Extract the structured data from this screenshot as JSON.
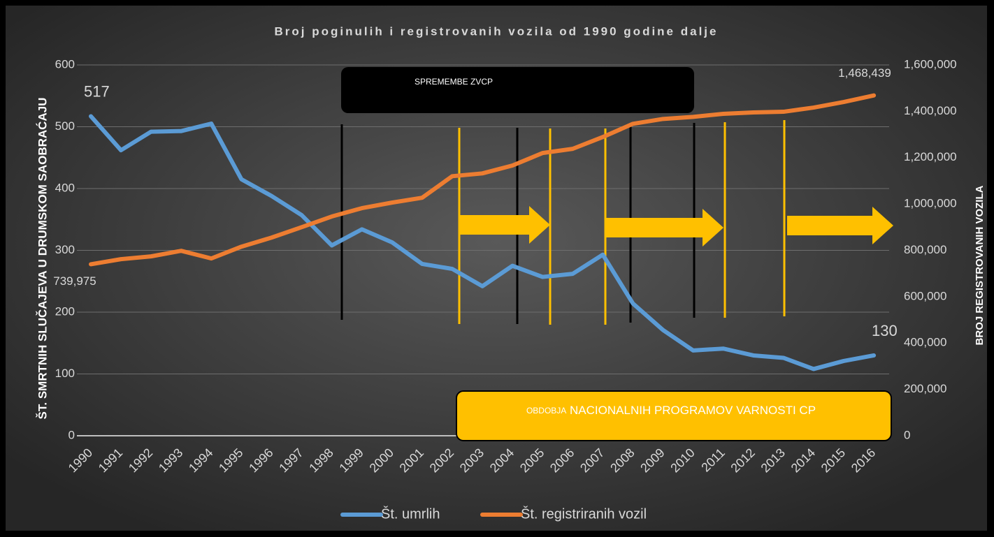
{
  "chart_data": {
    "type": "line",
    "title": "Broj poginulih i registrovanih vozila od 1990 godine dalje",
    "y_label": "ŠT. SMRTNIH SLUČAJEVA U DRUMSKOM SAOBRAĆAJU",
    "y2_label": "BROJ REGISTROVANIH VOZILA",
    "categories": [
      "1990",
      "1991",
      "1992",
      "1993",
      "1994",
      "1995",
      "1996",
      "1997",
      "1998",
      "1999",
      "2000",
      "2001",
      "2002",
      "2003",
      "2004",
      "2005",
      "2006",
      "2007",
      "2008",
      "2009",
      "2010",
      "2011",
      "2012",
      "2013",
      "2014",
      "2015",
      "2016"
    ],
    "series": [
      {
        "name": "Št. umrlih",
        "color": "#5b9bd5",
        "values": [
          517,
          462,
          492,
          493,
          505,
          415,
          388,
          357,
          308,
          334,
          313,
          278,
          270,
          242,
          275,
          257,
          262,
          293,
          214,
          171,
          138,
          141,
          130,
          126,
          108,
          121,
          130
        ],
        "value_labels": [
          "517",
          null,
          null,
          null,
          null,
          null,
          null,
          null,
          null,
          null,
          null,
          null,
          null,
          null,
          null,
          null,
          null,
          null,
          null,
          null,
          null,
          null,
          null,
          null,
          null,
          null,
          "130"
        ]
      },
      {
        "name": "Št. registriranih vozil",
        "color": "#ed7d31",
        "axis": "y2",
        "values": [
          739975,
          762000,
          774000,
          798000,
          765000,
          816000,
          855000,
          900000,
          946000,
          982000,
          1006000,
          1027000,
          1120000,
          1132000,
          1166000,
          1220000,
          1238000,
          1289000,
          1346000,
          1367000,
          1376000,
          1389000,
          1395000,
          1398000,
          1416000,
          1440000,
          1468439
        ],
        "value_labels": [
          "739,975",
          null,
          null,
          null,
          null,
          null,
          null,
          null,
          null,
          null,
          null,
          null,
          null,
          null,
          null,
          null,
          null,
          null,
          null,
          null,
          null,
          null,
          null,
          null,
          null,
          null,
          "1,468,439"
        ]
      }
    ],
    "ylim": [
      0,
      600
    ],
    "yticks": [
      0,
      100,
      200,
      300,
      400,
      500,
      600
    ],
    "y2lim": [
      0,
      1600000
    ],
    "y2ticks": [
      0,
      {
        "value": 200000,
        "label": "200,000"
      },
      {
        "value": 400000,
        "label": "400,000"
      },
      {
        "value": 600000,
        "label": "600,000"
      },
      {
        "value": 800000,
        "label": "800,000"
      },
      {
        "value": 1000000,
        "label": "1,000,000"
      },
      {
        "value": 1200000,
        "label": "1,200,000"
      },
      {
        "value": 1400000,
        "label": "1,400,000"
      },
      {
        "value": 1600000,
        "label": "1,600,000"
      }
    ],
    "grid": true,
    "annotations": {
      "changes": "SPREMEMBE ZVCP",
      "periods_small": "OBDOBJA",
      "periods": "NACIONALNIH PROGRAMOV VARNOSTI CP"
    }
  }
}
